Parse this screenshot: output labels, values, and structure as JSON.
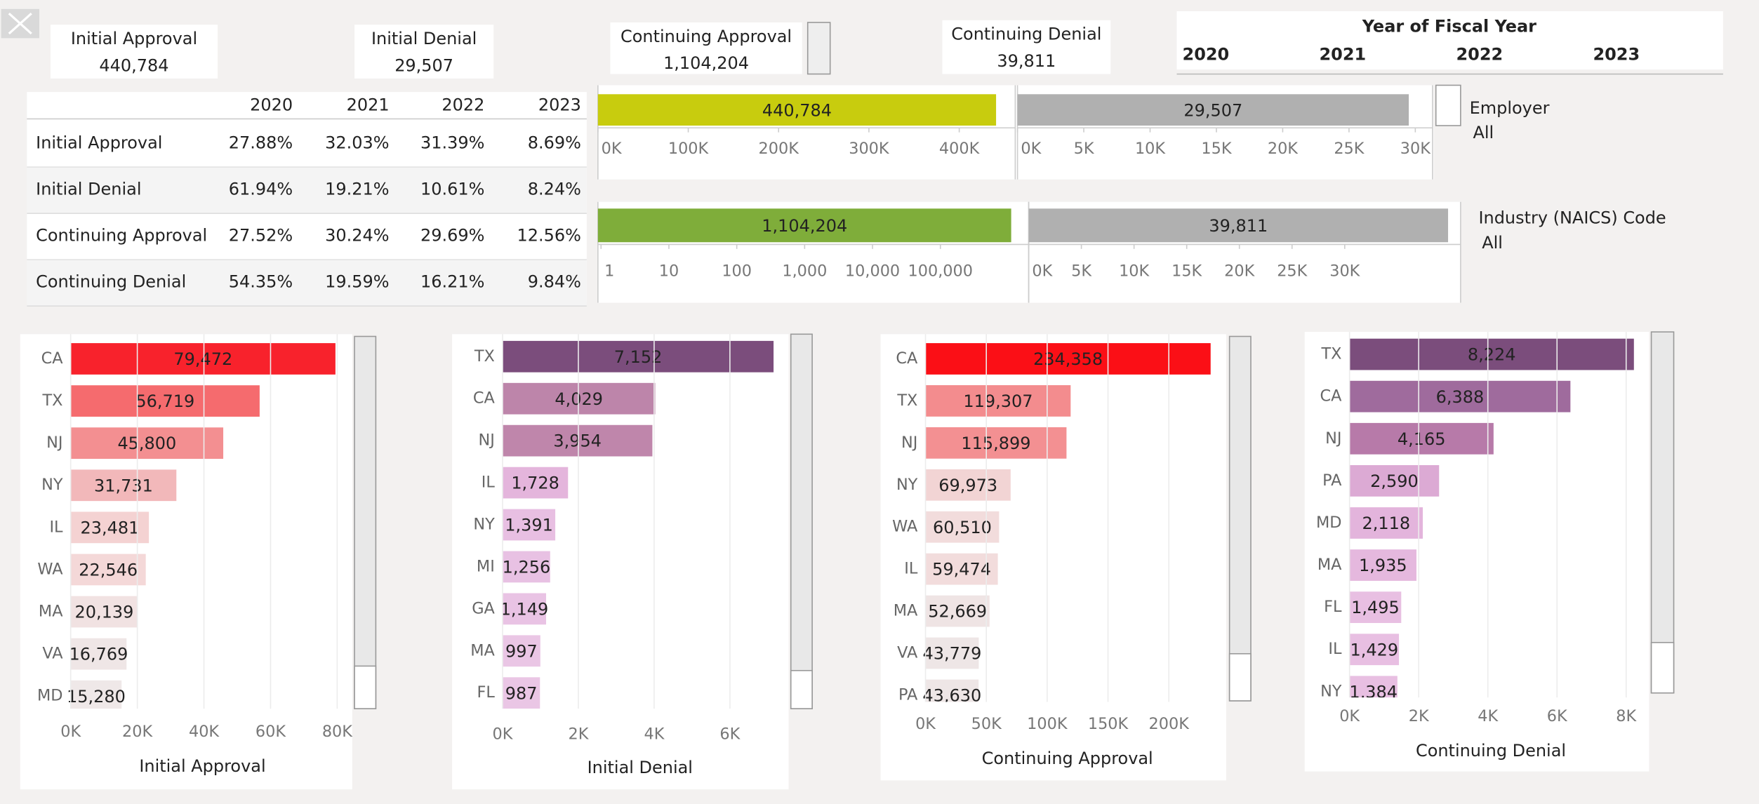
{
  "kpis": [
    {
      "title": "Initial Approval",
      "value": "440,784"
    },
    {
      "title": "Initial Denial",
      "value": "29,507"
    },
    {
      "title": "Continuing Approval",
      "value": "1,104,204"
    },
    {
      "title": "Continuing Denial",
      "value": "39,811"
    }
  ],
  "year_filter": {
    "title": "Year of Fiscal Year",
    "options": [
      "2020",
      "2021",
      "2022",
      "2023"
    ]
  },
  "table": {
    "columns": [
      "2020",
      "2021",
      "2022",
      "2023"
    ],
    "rows": [
      {
        "label": "Initial Approval",
        "cells": [
          "27.88%",
          "32.03%",
          "31.39%",
          "8.69%"
        ],
        "colors": [
          "#c8b830",
          "#c4c030",
          "#c5b933",
          "#4a9a7a"
        ]
      },
      {
        "label": "Initial Denial",
        "cells": [
          "61.94%",
          "19.21%",
          "10.61%",
          "8.24%"
        ],
        "colors": [
          "#c55a3f",
          "#63a85a",
          "#4e9c6e",
          "#469a78"
        ]
      },
      {
        "label": "Continuing Approval",
        "cells": [
          "27.52%",
          "30.24%",
          "29.69%",
          "12.56%"
        ],
        "colors": [
          "#c4b532",
          "#c8c030",
          "#c5bd30",
          "#4d9b70"
        ]
      },
      {
        "label": "Continuing Denial",
        "cells": [
          "54.35%",
          "19.59%",
          "16.21%",
          "9.84%"
        ],
        "colors": [
          "#d9853e",
          "#65a85a",
          "#5aa362",
          "#469a78"
        ]
      }
    ]
  },
  "filters": [
    {
      "title": "Employer",
      "value": "All"
    },
    {
      "title": "Industry (NAICS) Code",
      "value": "All"
    }
  ],
  "chart_data": [
    {
      "type": "bar",
      "values": [
        440784
      ],
      "value_labels": [
        "440,784"
      ],
      "color": "#c8cc0e",
      "xlim": [
        0,
        462000
      ],
      "xticks": [
        {
          "value": 0,
          "label": "0K"
        },
        {
          "value": 100000,
          "label": "100K"
        },
        {
          "value": 200000,
          "label": "200K"
        },
        {
          "value": 300000,
          "label": "300K"
        },
        {
          "value": 400000,
          "label": "400K"
        }
      ]
    },
    {
      "type": "bar",
      "values": [
        29507
      ],
      "value_labels": [
        "29,507"
      ],
      "color": "#b0b0b0",
      "xlim": [
        0,
        31300
      ],
      "xticks": [
        {
          "value": 0,
          "label": "0K"
        },
        {
          "value": 5000,
          "label": "5K"
        },
        {
          "value": 10000,
          "label": "10K"
        },
        {
          "value": 15000,
          "label": "15K"
        },
        {
          "value": 20000,
          "label": "20K"
        },
        {
          "value": 25000,
          "label": "25K"
        },
        {
          "value": 30000,
          "label": "30K"
        }
      ]
    },
    {
      "type": "bar",
      "values": [
        1104204
      ],
      "value_labels": [
        "1,104,204"
      ],
      "color": "#7fad3a",
      "log_scale": true,
      "xlim": [
        0.9,
        2000000
      ],
      "xticks": [
        1,
        10,
        100,
        {
          "value": 1000,
          "label": "1,000"
        },
        {
          "value": 10000,
          "label": "10,000"
        },
        {
          "value": 100000,
          "label": "100,000"
        }
      ]
    },
    {
      "type": "bar",
      "values": [
        39811
      ],
      "value_labels": [
        "39,811"
      ],
      "color": "#b0b0b0",
      "xlim": [
        0,
        41000
      ],
      "xticks": [
        {
          "value": 0,
          "label": "0K"
        },
        {
          "value": 5000,
          "label": "5K"
        },
        {
          "value": 10000,
          "label": "10K"
        },
        {
          "value": 15000,
          "label": "15K"
        },
        {
          "value": 20000,
          "label": "20K"
        },
        {
          "value": 25000,
          "label": "25K"
        },
        {
          "value": 30000,
          "label": "30K"
        }
      ]
    },
    {
      "type": "bar",
      "xlabel": "Initial Approval",
      "grid": true,
      "categories": [
        "CA",
        "TX",
        "NJ",
        "NY",
        "IL",
        "WA",
        "MA",
        "VA",
        "MD"
      ],
      "values": [
        79472,
        56719,
        45800,
        31731,
        23481,
        22546,
        20139,
        16769,
        15280
      ],
      "value_labels": [
        "79,472",
        "56,719",
        "45,800",
        "31,731",
        "23,481",
        "22,546",
        "20,139",
        "16,769",
        "15,280"
      ],
      "colors": [
        "#f8222c",
        "#f56b6e",
        "#f38f91",
        "#f2b8ba",
        "#f4d2d2",
        "#f4d8d8",
        "#f1e2e2",
        "#efe6e6",
        "#efe8e8"
      ],
      "xlim": [
        0,
        82500
      ],
      "xticks": [
        {
          "value": 0,
          "label": "0K"
        },
        {
          "value": 20000,
          "label": "20K"
        },
        {
          "value": 40000,
          "label": "40K"
        },
        {
          "value": 60000,
          "label": "60K"
        },
        {
          "value": 80000,
          "label": "80K"
        }
      ]
    },
    {
      "type": "bar",
      "xlabel": "Initial Denial",
      "grid": true,
      "categories": [
        "TX",
        "CA",
        "NJ",
        "IL",
        "NY",
        "MI",
        "GA",
        "MA",
        "FL"
      ],
      "values": [
        7152,
        4029,
        3954,
        1728,
        1391,
        1256,
        1149,
        997,
        987
      ],
      "value_labels": [
        "7,152",
        "4,029",
        "3,954",
        "1,728",
        "1,391",
        "1,256",
        "1,149",
        "997",
        "987"
      ],
      "colors": [
        "#7b4d7c",
        "#bd85aa",
        "#bf86ab",
        "#e4b5dc",
        "#e8bfe2",
        "#e8c1e3",
        "#e9c3e4",
        "#eac6e5",
        "#eac6e5"
      ],
      "xlim": [
        0,
        7550
      ],
      "xticks": [
        {
          "value": 0,
          "label": "0K"
        },
        {
          "value": 2000,
          "label": "2K"
        },
        {
          "value": 4000,
          "label": "4K"
        },
        {
          "value": 6000,
          "label": "6K"
        }
      ]
    },
    {
      "type": "bar",
      "xlabel": "Continuing Approval",
      "grid": true,
      "categories": [
        "CA",
        "TX",
        "NJ",
        "NY",
        "WA",
        "IL",
        "MA",
        "VA",
        "PA"
      ],
      "values": [
        234358,
        119307,
        115899,
        69973,
        60510,
        59474,
        52669,
        43779,
        43630
      ],
      "value_labels": [
        "234,358",
        "119,307",
        "115,899",
        "69,973",
        "60,510",
        "59,474",
        "52,669",
        "43,779",
        "43,630"
      ],
      "colors": [
        "#fb0f16",
        "#f38c8e",
        "#f39092",
        "#f2d4d4",
        "#f2dcdc",
        "#f2dcdc",
        "#efe4e4",
        "#eee6e6",
        "#eee6e6"
      ],
      "xlim": [
        0,
        242500
      ],
      "xticks": [
        {
          "value": 0,
          "label": "0K"
        },
        {
          "value": 50000,
          "label": "50K"
        },
        {
          "value": 100000,
          "label": "100K"
        },
        {
          "value": 150000,
          "label": "150K"
        },
        {
          "value": 200000,
          "label": "200K"
        }
      ]
    },
    {
      "type": "bar",
      "xlabel": "Continuing Denial",
      "grid": true,
      "categories": [
        "TX",
        "CA",
        "NJ",
        "PA",
        "MD",
        "MA",
        "FL",
        "IL",
        "NY"
      ],
      "values": [
        8224,
        6388,
        4165,
        2590,
        2118,
        1935,
        1495,
        1429,
        1384
      ],
      "value_labels": [
        "8,224",
        "6,388",
        "4,165",
        "2,590",
        "2,118",
        "1,935",
        "1,495",
        "1,429",
        "1,384"
      ],
      "colors": [
        "#7b4d7c",
        "#9f6b9d",
        "#b77aa9",
        "#dcaad4",
        "#e3b4dc",
        "#e5b8de",
        "#e8bfe2",
        "#e8bfe2",
        "#e8bfe2"
      ],
      "xlim": [
        0,
        8500
      ],
      "xticks": [
        {
          "value": 0,
          "label": "0K"
        },
        {
          "value": 2000,
          "label": "2K"
        },
        {
          "value": 4000,
          "label": "4K"
        },
        {
          "value": 6000,
          "label": "6K"
        },
        {
          "value": 8000,
          "label": "8K"
        }
      ]
    }
  ]
}
